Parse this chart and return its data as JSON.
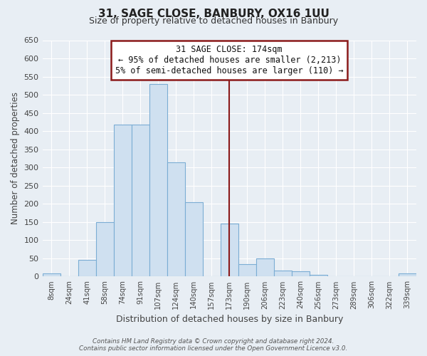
{
  "title": "31, SAGE CLOSE, BANBURY, OX16 1UU",
  "subtitle": "Size of property relative to detached houses in Banbury",
  "xlabel": "Distribution of detached houses by size in Banbury",
  "ylabel": "Number of detached properties",
  "bin_labels": [
    "8sqm",
    "24sqm",
    "41sqm",
    "58sqm",
    "74sqm",
    "91sqm",
    "107sqm",
    "124sqm",
    "140sqm",
    "157sqm",
    "173sqm",
    "190sqm",
    "206sqm",
    "223sqm",
    "240sqm",
    "256sqm",
    "273sqm",
    "289sqm",
    "306sqm",
    "322sqm",
    "339sqm"
  ],
  "bar_heights": [
    8,
    0,
    45,
    150,
    418,
    418,
    530,
    314,
    205,
    0,
    145,
    35,
    50,
    16,
    15,
    5,
    0,
    0,
    0,
    0,
    8
  ],
  "bar_color": "#cfe0f0",
  "bar_edge_color": "#7badd4",
  "ylim": [
    0,
    650
  ],
  "yticks": [
    0,
    50,
    100,
    150,
    200,
    250,
    300,
    350,
    400,
    450,
    500,
    550,
    600,
    650
  ],
  "vline_color": "#8b1a1a",
  "annotation_title": "31 SAGE CLOSE: 174sqm",
  "annotation_line1": "← 95% of detached houses are smaller (2,213)",
  "annotation_line2": "5% of semi-detached houses are larger (110) →",
  "annotation_box_color": "#ffffff",
  "annotation_border_color": "#8b1a1a",
  "footer_line1": "Contains HM Land Registry data © Crown copyright and database right 2024.",
  "footer_line2": "Contains public sector information licensed under the Open Government Licence v3.0.",
  "background_color": "#e8eef4",
  "grid_color": "#ffffff",
  "tick_color": "#444444",
  "label_color": "#444444"
}
